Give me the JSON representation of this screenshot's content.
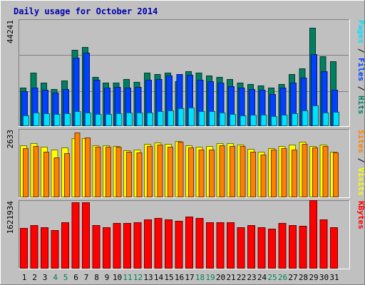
{
  "chart_data": {
    "type": "bar",
    "title": "Daily usage for October 2014",
    "categories": [
      "1",
      "2",
      "3",
      "4",
      "5",
      "6",
      "7",
      "8",
      "9",
      "10",
      "11",
      "12",
      "13",
      "14",
      "15",
      "16",
      "17",
      "18",
      "19",
      "20",
      "21",
      "22",
      "23",
      "24",
      "25",
      "26",
      "27",
      "28",
      "29",
      "30",
      "31"
    ],
    "weekend_days": [
      "4",
      "5",
      "11",
      "12",
      "18",
      "19",
      "25",
      "26"
    ],
    "panels": [
      {
        "name": "hits_files_pages",
        "ymax_label": "44241",
        "ymax": 44241,
        "right_label_parts": [
          {
            "text": "Pages",
            "color": "#00e0ff"
          },
          {
            "text": " / ",
            "color": "#000000"
          },
          {
            "text": "Files",
            "color": "#0040ff"
          },
          {
            "text": " / ",
            "color": "#000000"
          },
          {
            "text": "Hits",
            "color": "#008060"
          }
        ],
        "series": [
          {
            "name": "Hits",
            "color": "#008060",
            "values": [
              16300,
              22600,
              18300,
              15500,
              19200,
              32100,
              33400,
              20700,
              18300,
              18300,
              19800,
              18600,
              22600,
              21900,
              22600,
              18900,
              23200,
              22600,
              21400,
              20900,
              19800,
              18300,
              17700,
              17100,
              16200,
              17700,
              21900,
              24400,
              41600,
              29500,
              27400
            ]
          },
          {
            "name": "Files",
            "color": "#0040ff",
            "values": [
              14600,
              16300,
              15200,
              14000,
              15800,
              28800,
              31100,
              19500,
              16300,
              16700,
              16300,
              16700,
              19500,
              19800,
              21400,
              21900,
              21700,
              19500,
              18900,
              18300,
              16900,
              16300,
              15800,
              15200,
              13500,
              16300,
              18300,
              20600,
              30300,
              23200,
              15200
            ]
          },
          {
            "name": "Pages",
            "color": "#00e0ff",
            "values": [
              4600,
              5800,
              5400,
              5100,
              5400,
              6300,
              5600,
              5100,
              5100,
              5400,
              5600,
              5800,
              5800,
              6300,
              6700,
              7400,
              7700,
              6300,
              6300,
              5600,
              5100,
              4600,
              4800,
              4800,
              4200,
              4800,
              5400,
              6700,
              8600,
              5600,
              6100
            ]
          }
        ]
      },
      {
        "name": "visits_sites",
        "ymax_label": "2633",
        "ymax": 2633,
        "right_label_parts": [
          {
            "text": "Sites",
            "color": "#ff8000"
          },
          {
            "text": " / ",
            "color": "#000000"
          },
          {
            "text": "Visits",
            "color": "#ffff00"
          }
        ],
        "series": [
          {
            "name": "Visits",
            "color": "#ffff00",
            "values": [
              2060,
              2140,
              2000,
              1890,
              1970,
              2340,
              2340,
              2080,
              2060,
              2040,
              1870,
              1910,
              2130,
              2180,
              2130,
              2230,
              2080,
              2010,
              2050,
              2160,
              2160,
              2100,
              1930,
              1800,
              1940,
              2030,
              2090,
              2200,
              2030,
              2090,
              1810
            ]
          },
          {
            "name": "Sites",
            "color": "#ff8000",
            "values": [
              1940,
              2030,
              1800,
              1590,
              1760,
              2580,
              2390,
              2020,
              2000,
              2010,
              1800,
              1790,
              2030,
              2100,
              2000,
              2200,
              1980,
              1900,
              1910,
              2080,
              2050,
              2030,
              1800,
              1710,
              1900,
              1960,
              1900,
              2130,
              1980,
              2050,
              1780
            ]
          }
        ]
      },
      {
        "name": "kbytes",
        "ymax_label": "1621934",
        "ymax": 1621934,
        "right_label_parts": [
          {
            "text": "KBytes",
            "color": "#ff0000"
          }
        ],
        "series": [
          {
            "name": "KBytes",
            "color": "#ff0000",
            "values": [
              1000000,
              1060000,
              1010000,
              940000,
              1130000,
              1620000,
              1620000,
              1060000,
              1010000,
              1110000,
              1110000,
              1130000,
              1200000,
              1230000,
              1210000,
              1170000,
              1270000,
              1230000,
              1130000,
              1130000,
              1130000,
              1010000,
              1060000,
              1010000,
              970000,
              1110000,
              1060000,
              1040000,
              1680000,
              1200000,
              1010000
            ]
          }
        ]
      }
    ]
  }
}
